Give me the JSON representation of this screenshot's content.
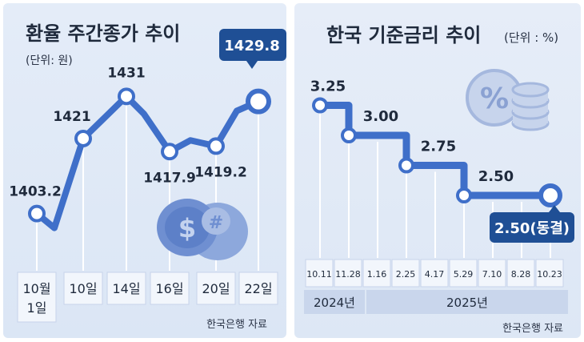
{
  "left": {
    "title": "환율 주간종가 추이",
    "unit": "(단위: 원)",
    "source": "한국은행 자료",
    "highlight": "1429.8",
    "icon": "dollar-coins-icon"
  },
  "right": {
    "title": "한국 기준금리 추이",
    "unit": "(단위 : %)",
    "source": "한국은행 자료",
    "highlight": "2.50(동결)",
    "years": [
      "2024년",
      "2025년"
    ],
    "icon": "percent-coins-icon"
  },
  "chart_data": [
    {
      "type": "line",
      "title": "환율 주간종가 추이",
      "unit": "(단위: 원)",
      "categories": [
        "10월\n1일",
        "10일",
        "14일",
        "16일",
        "20일",
        "22일"
      ],
      "values": [
        1403.2,
        1421,
        1431,
        1417.9,
        1419.2,
        1429.8
      ],
      "value_labels": [
        "1403.2",
        "1421",
        "1431",
        "1417.9",
        "1419.2",
        "1429.8"
      ],
      "ylim": [
        1398,
        1436
      ]
    },
    {
      "type": "line",
      "step": true,
      "title": "한국 기준금리 추이",
      "unit": "(단위 : %)",
      "categories": [
        "10.11",
        "11.28",
        "1.16",
        "2.25",
        "4.17",
        "5.29",
        "7.10",
        "8.28",
        "10.23"
      ],
      "values": [
        3.25,
        3.0,
        3.0,
        2.75,
        2.75,
        2.5,
        2.5,
        2.5,
        2.5
      ],
      "change_labels": [
        "3.25",
        "3.00",
        "2.75",
        "2.50"
      ],
      "ylim": [
        2.1,
        3.5
      ]
    }
  ],
  "colors": {
    "line": "#3f6fc9",
    "highlight_box": "#1f4f95",
    "axis_box": "#f2f6fc",
    "year_box": "#c9d6ec"
  }
}
